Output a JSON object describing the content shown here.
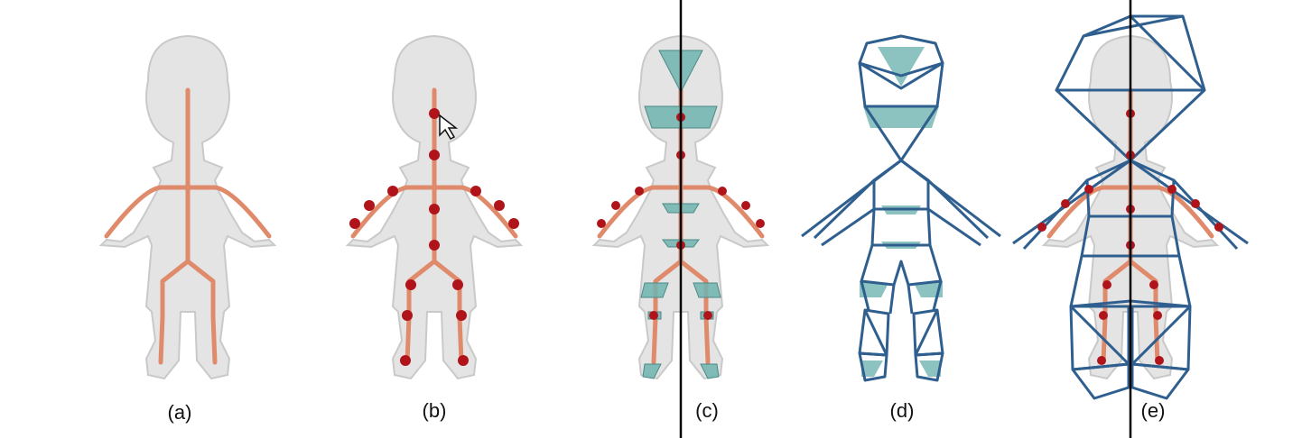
{
  "figure": {
    "panels": [
      {
        "id": "a",
        "label": "(a)",
        "mode": "skeleton"
      },
      {
        "id": "b",
        "label": "(b)",
        "mode": "joints"
      },
      {
        "id": "c",
        "label": "(c)",
        "mode": "cross-sections"
      },
      {
        "id": "d",
        "label": "(d)",
        "mode": "cage-only"
      },
      {
        "id": "e",
        "label": "(e)",
        "mode": "cage-over-mesh"
      }
    ],
    "colors": {
      "mesh_fill": "#e4e4e4",
      "mesh_stroke": "#c9c9c9",
      "skeleton": "#e08a6c",
      "joint": "#b0141a",
      "cage": "#2f5f8f",
      "section": "#6fb4b0",
      "divider": "#000000"
    }
  }
}
